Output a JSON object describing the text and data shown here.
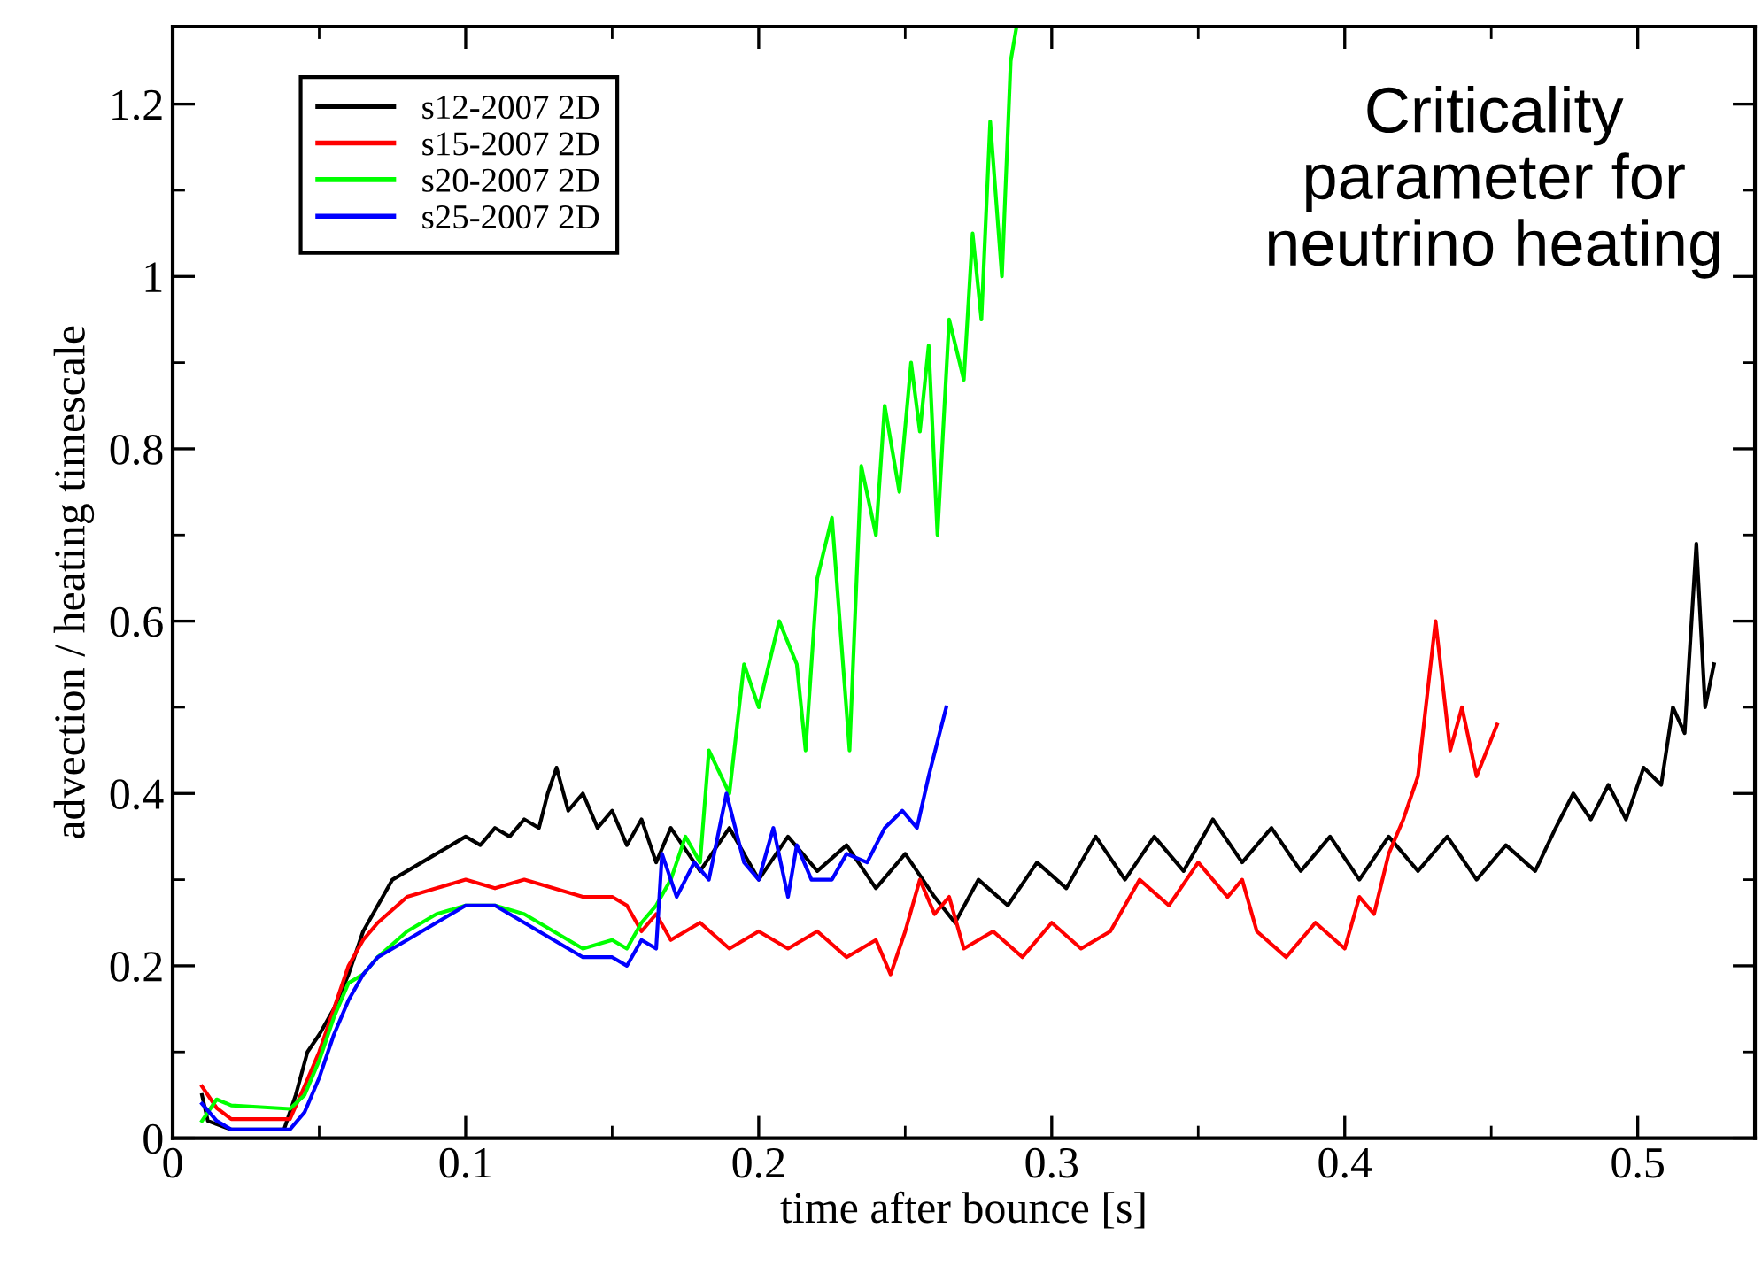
{
  "chart_data": {
    "type": "line",
    "xlabel": "time after bounce [s]",
    "ylabel": "advection / heating timescale",
    "annotations": [
      "Criticality\nparameter for\nneutrino heating"
    ],
    "xlim": [
      0,
      0.54
    ],
    "xticks": [
      0,
      0.1,
      0.2,
      0.3,
      0.4,
      0.5
    ],
    "ylim": [
      0,
      1.29
    ],
    "yticks": [
      0,
      0.2,
      0.4,
      0.6,
      0.8,
      {
        "value": 1,
        "label": "1"
      },
      1.2
    ],
    "grid": false,
    "legend": "top left",
    "marker": "none",
    "line_style": "solid",
    "series": [
      {
        "name": "s12-2007 2D",
        "color": "#000000",
        "x": [
          0.01,
          0.012,
          0.02,
          0.03,
          0.038,
          0.042,
          0.046,
          0.05,
          0.055,
          0.06,
          0.065,
          0.07,
          0.075,
          0.08,
          0.09,
          0.1,
          0.105,
          0.11,
          0.115,
          0.12,
          0.125,
          0.128,
          0.131,
          0.135,
          0.14,
          0.145,
          0.15,
          0.155,
          0.16,
          0.165,
          0.17,
          0.18,
          0.19,
          0.2,
          0.21,
          0.22,
          0.23,
          0.24,
          0.25,
          0.26,
          0.267,
          0.275,
          0.285,
          0.295,
          0.305,
          0.315,
          0.325,
          0.335,
          0.345,
          0.355,
          0.365,
          0.375,
          0.385,
          0.395,
          0.405,
          0.415,
          0.425,
          0.435,
          0.445,
          0.455,
          0.465,
          0.472,
          0.478,
          0.484,
          0.49,
          0.496,
          0.502,
          0.508,
          0.512,
          0.516,
          0.52,
          0.523,
          0.526
        ],
        "values": [
          0.05,
          0.02,
          0.01,
          0.01,
          0.01,
          0.05,
          0.1,
          0.12,
          0.15,
          0.19,
          0.24,
          0.27,
          0.3,
          0.31,
          0.33,
          0.35,
          0.34,
          0.36,
          0.35,
          0.37,
          0.36,
          0.4,
          0.43,
          0.38,
          0.4,
          0.36,
          0.38,
          0.34,
          0.37,
          0.32,
          0.36,
          0.31,
          0.36,
          0.3,
          0.35,
          0.31,
          0.34,
          0.29,
          0.33,
          0.28,
          0.25,
          0.3,
          0.27,
          0.32,
          0.29,
          0.35,
          0.3,
          0.35,
          0.31,
          0.37,
          0.32,
          0.36,
          0.31,
          0.35,
          0.3,
          0.35,
          0.31,
          0.35,
          0.3,
          0.34,
          0.31,
          0.36,
          0.4,
          0.37,
          0.41,
          0.37,
          0.43,
          0.41,
          0.5,
          0.47,
          0.69,
          0.5,
          0.55
        ]
      },
      {
        "name": "s15-2007 2D",
        "color": "#ff0000",
        "x": [
          0.01,
          0.015,
          0.02,
          0.03,
          0.04,
          0.045,
          0.05,
          0.055,
          0.06,
          0.065,
          0.07,
          0.08,
          0.09,
          0.1,
          0.11,
          0.12,
          0.13,
          0.14,
          0.15,
          0.155,
          0.16,
          0.165,
          0.17,
          0.18,
          0.19,
          0.2,
          0.21,
          0.22,
          0.23,
          0.24,
          0.245,
          0.25,
          0.255,
          0.26,
          0.265,
          0.27,
          0.28,
          0.29,
          0.3,
          0.31,
          0.32,
          0.33,
          0.34,
          0.35,
          0.36,
          0.365,
          0.37,
          0.38,
          0.39,
          0.4,
          0.405,
          0.41,
          0.415,
          0.42,
          0.425,
          0.431,
          0.436,
          0.44,
          0.445,
          0.452
        ],
        "values": [
          0.06,
          0.035,
          0.022,
          0.022,
          0.022,
          0.06,
          0.1,
          0.15,
          0.2,
          0.23,
          0.25,
          0.28,
          0.29,
          0.3,
          0.29,
          0.3,
          0.29,
          0.28,
          0.28,
          0.27,
          0.24,
          0.26,
          0.23,
          0.25,
          0.22,
          0.24,
          0.22,
          0.24,
          0.21,
          0.23,
          0.19,
          0.24,
          0.3,
          0.26,
          0.28,
          0.22,
          0.24,
          0.21,
          0.25,
          0.22,
          0.24,
          0.3,
          0.27,
          0.32,
          0.28,
          0.3,
          0.24,
          0.21,
          0.25,
          0.22,
          0.28,
          0.26,
          0.33,
          0.37,
          0.42,
          0.6,
          0.45,
          0.5,
          0.42,
          0.48
        ]
      },
      {
        "name": "s20-2007 2D",
        "color": "#00ff00",
        "x": [
          0.01,
          0.015,
          0.02,
          0.03,
          0.04,
          0.045,
          0.05,
          0.055,
          0.06,
          0.065,
          0.07,
          0.08,
          0.09,
          0.1,
          0.11,
          0.12,
          0.13,
          0.14,
          0.15,
          0.155,
          0.16,
          0.165,
          0.17,
          0.175,
          0.18,
          0.183,
          0.19,
          0.195,
          0.2,
          0.207,
          0.213,
          0.216,
          0.22,
          0.225,
          0.231,
          0.235,
          0.24,
          0.243,
          0.248,
          0.252,
          0.255,
          0.258,
          0.261,
          0.265,
          0.27,
          0.273,
          0.276,
          0.279,
          0.283,
          0.286,
          0.288
        ],
        "values": [
          0.02,
          0.045,
          0.038,
          0.036,
          0.034,
          0.05,
          0.09,
          0.14,
          0.18,
          0.19,
          0.21,
          0.24,
          0.26,
          0.27,
          0.27,
          0.26,
          0.24,
          0.22,
          0.23,
          0.22,
          0.25,
          0.27,
          0.3,
          0.35,
          0.32,
          0.45,
          0.4,
          0.55,
          0.5,
          0.6,
          0.55,
          0.45,
          0.65,
          0.72,
          0.45,
          0.78,
          0.7,
          0.85,
          0.75,
          0.9,
          0.82,
          0.92,
          0.7,
          0.95,
          0.88,
          1.05,
          0.95,
          1.18,
          1.0,
          1.25,
          1.29
        ]
      },
      {
        "name": "s25-2007 2D",
        "color": "#0000ff",
        "x": [
          0.01,
          0.015,
          0.02,
          0.03,
          0.04,
          0.045,
          0.05,
          0.055,
          0.06,
          0.065,
          0.07,
          0.08,
          0.09,
          0.1,
          0.11,
          0.12,
          0.13,
          0.14,
          0.15,
          0.155,
          0.16,
          0.165,
          0.167,
          0.172,
          0.178,
          0.183,
          0.189,
          0.195,
          0.2,
          0.205,
          0.21,
          0.213,
          0.218,
          0.225,
          0.23,
          0.237,
          0.243,
          0.249,
          0.254,
          0.258,
          0.261,
          0.264
        ],
        "values": [
          0.04,
          0.02,
          0.01,
          0.01,
          0.01,
          0.03,
          0.07,
          0.12,
          0.16,
          0.19,
          0.21,
          0.23,
          0.25,
          0.27,
          0.27,
          0.25,
          0.23,
          0.21,
          0.21,
          0.2,
          0.23,
          0.22,
          0.33,
          0.28,
          0.32,
          0.3,
          0.4,
          0.32,
          0.3,
          0.36,
          0.28,
          0.34,
          0.3,
          0.3,
          0.33,
          0.32,
          0.36,
          0.38,
          0.36,
          0.42,
          0.46,
          0.5
        ]
      }
    ]
  }
}
